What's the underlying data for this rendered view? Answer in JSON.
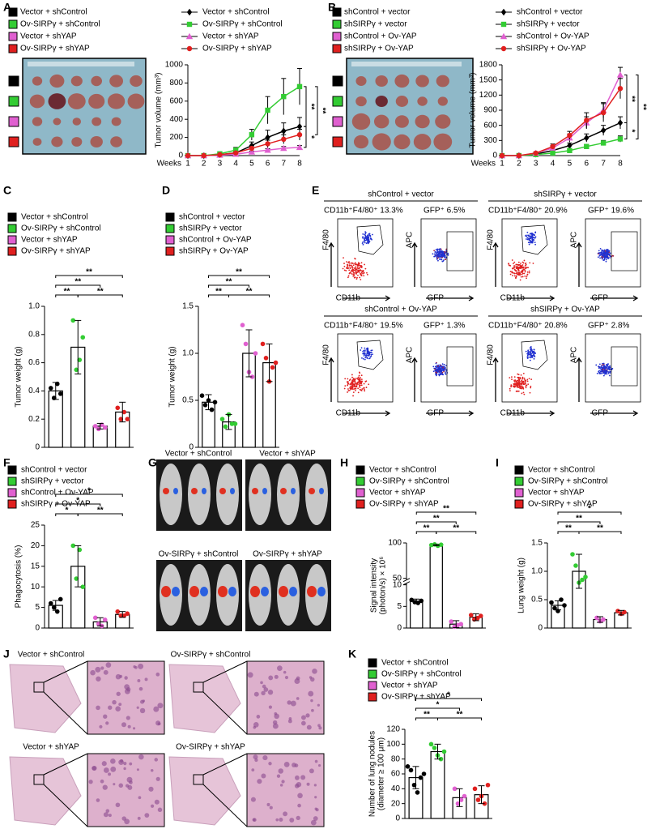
{
  "chart_data": [
    {
      "panel": "A",
      "type": "line",
      "photo_legend": [
        {
          "name": "Vector + shControl",
          "color": "#000000"
        },
        {
          "name": "Ov-SIRPγ + shControl",
          "color": "#33cc33"
        },
        {
          "name": "Vector + shYAP",
          "color": "#e060d0"
        },
        {
          "name": "Ov-SIRPγ + shYAP",
          "color": "#e0201f"
        }
      ],
      "x_label": "Weeks",
      "y_label": "Tumor volume (mm³)",
      "categories": [
        "1",
        "2",
        "3",
        "4",
        "5",
        "6",
        "7",
        "8"
      ],
      "ylim": [
        0,
        1000
      ],
      "yticks": [
        0,
        200,
        400,
        600,
        800,
        1000
      ],
      "series": [
        {
          "name": "Vector + shControl",
          "color": "#000000",
          "marker": "diamond",
          "values": [
            0,
            0,
            10,
            30,
            110,
            200,
            270,
            320
          ],
          "errors": [
            0,
            0,
            5,
            10,
            40,
            80,
            90,
            100
          ]
        },
        {
          "name": "Ov-SIRPγ + shControl",
          "color": "#33cc33",
          "marker": "square",
          "values": [
            0,
            0,
            20,
            60,
            230,
            500,
            650,
            760
          ],
          "errors": [
            0,
            0,
            10,
            30,
            60,
            150,
            200,
            200
          ]
        },
        {
          "name": "Vector + shYAP",
          "color": "#e060d0",
          "marker": "triangle",
          "values": [
            0,
            0,
            5,
            15,
            40,
            60,
            80,
            90
          ],
          "errors": [
            0,
            0,
            3,
            5,
            10,
            15,
            20,
            20
          ]
        },
        {
          "name": "Ov-SIRPγ + shYAP",
          "color": "#e0201f",
          "marker": "circle",
          "values": [
            0,
            0,
            10,
            30,
            80,
            130,
            180,
            230
          ],
          "errors": [
            0,
            0,
            5,
            10,
            30,
            40,
            50,
            60
          ]
        }
      ],
      "significance": [
        {
          "series": [
            1,
            0
          ],
          "label": "**"
        },
        {
          "series": [
            0,
            2
          ],
          "label": "*"
        },
        {
          "series": [
            1,
            3
          ],
          "label": "**"
        }
      ]
    },
    {
      "panel": "B",
      "type": "line",
      "photo_legend": [
        {
          "name": "shControl + vector",
          "color": "#000000"
        },
        {
          "name": "shSIRPγ + vector",
          "color": "#33cc33"
        },
        {
          "name": "shControl + Ov-YAP",
          "color": "#e060d0"
        },
        {
          "name": "shSIRPγ + Ov-YAP",
          "color": "#e0201f"
        }
      ],
      "x_label": "Weeks",
      "y_label": "Tumor volume (mm³)",
      "categories": [
        "1",
        "2",
        "3",
        "4",
        "5",
        "6",
        "7",
        "8"
      ],
      "ylim": [
        0,
        1800
      ],
      "yticks": [
        0,
        300,
        600,
        900,
        1200,
        1500,
        1800
      ],
      "series": [
        {
          "name": "shControl + vector",
          "color": "#000000",
          "marker": "diamond",
          "values": [
            0,
            0,
            30,
            100,
            200,
            350,
            500,
            650
          ],
          "errors": [
            0,
            0,
            10,
            30,
            50,
            80,
            100,
            120
          ]
        },
        {
          "name": "shSIRPγ + vector",
          "color": "#33cc33",
          "marker": "square",
          "values": [
            0,
            0,
            20,
            50,
            100,
            180,
            250,
            330
          ],
          "errors": [
            0,
            0,
            10,
            20,
            30,
            40,
            50,
            60
          ]
        },
        {
          "name": "shControl + Ov-YAP",
          "color": "#e060d0",
          "marker": "triangle",
          "values": [
            0,
            0,
            50,
            150,
            350,
            650,
            900,
            1600
          ],
          "errors": [
            0,
            0,
            20,
            50,
            80,
            120,
            150,
            150
          ]
        },
        {
          "name": "shSIRPγ + Ov-YAP",
          "color": "#e0201f",
          "marker": "circle",
          "values": [
            0,
            0,
            50,
            180,
            400,
            700,
            850,
            1330
          ],
          "errors": [
            0,
            0,
            20,
            50,
            80,
            150,
            180,
            200
          ]
        }
      ],
      "significance": [
        {
          "series": [
            2,
            0
          ],
          "label": "**"
        },
        {
          "series": [
            0,
            1
          ],
          "label": "*"
        },
        {
          "series": [
            2,
            1
          ],
          "label": "**"
        }
      ]
    },
    {
      "panel": "C",
      "type": "bar",
      "bar_fill": "#ffffff",
      "legend": [
        {
          "name": "Vector + shControl",
          "color": "#000000"
        },
        {
          "name": "Ov-SIRPγ + shControl",
          "color": "#33cc33"
        },
        {
          "name": "Vector + shYAP",
          "color": "#e060d0"
        },
        {
          "name": "Ov-SIRPγ + shYAP",
          "color": "#e0201f"
        }
      ],
      "y_label": "Tumor weight (g)",
      "ylim": [
        0,
        1.0
      ],
      "yticks": [
        0,
        0.2,
        0.4,
        0.6,
        0.8,
        {
          "value": 1.0,
          "label": "1.0"
        }
      ],
      "values": [
        0.4,
        0.71,
        0.15,
        0.25
      ],
      "errors": [
        0.06,
        0.19,
        0.02,
        0.07
      ],
      "points": [
        [
          0.42,
          0.35,
          0.45,
          0.38
        ],
        [
          0.9,
          0.55,
          0.62,
          0.78
        ],
        [
          0.15,
          0.13,
          0.16,
          0.14
        ],
        [
          0.28,
          0.2,
          0.25,
          0.2
        ]
      ],
      "significance": [
        {
          "groups": [
            0,
            1
          ],
          "label": "**"
        },
        {
          "groups": [
            1,
            3
          ],
          "label": "**"
        },
        {
          "groups": [
            0,
            2
          ],
          "label": "**"
        },
        {
          "groups": [
            0,
            3
          ],
          "label": "**"
        }
      ]
    },
    {
      "panel": "D",
      "type": "bar",
      "bar_fill": "#ffffff",
      "legend": [
        {
          "name": "shControl + vector",
          "color": "#000000"
        },
        {
          "name": "shSIRPγ + vector",
          "color": "#33cc33"
        },
        {
          "name": "shControl + Ov-YAP",
          "color": "#e060d0"
        },
        {
          "name": "shSIRPγ + Ov-YAP",
          "color": "#e0201f"
        }
      ],
      "y_label": "Tumor weight (g)",
      "ylim": [
        0,
        1.5
      ],
      "yticks": [
        0,
        0.5,
        {
          "value": 1.0,
          "label": "1.0"
        },
        1.5
      ],
      "values": [
        0.48,
        0.27,
        1.0,
        0.9
      ],
      "errors": [
        0.08,
        0.08,
        0.25,
        0.2
      ],
      "points": [
        [
          0.55,
          0.45,
          0.5,
          0.4,
          0.48
        ],
        [
          0.3,
          0.22,
          0.35,
          0.25,
          0.25
        ],
        [
          1.3,
          1.1,
          0.8,
          0.75,
          1.0
        ],
        [
          1.1,
          0.95,
          0.7,
          0.85,
          0.9
        ]
      ],
      "significance": [
        {
          "groups": [
            0,
            1
          ],
          "label": "**"
        },
        {
          "groups": [
            1,
            3
          ],
          "label": "**"
        },
        {
          "groups": [
            0,
            2
          ],
          "label": "**"
        },
        {
          "groups": [
            0,
            3
          ],
          "label": "**"
        }
      ]
    },
    {
      "panel": "F",
      "type": "bar",
      "bar_fill": "#ffffff",
      "legend": [
        {
          "name": "shControl + vector",
          "color": "#000000"
        },
        {
          "name": "shSIRPγ + vector",
          "color": "#33cc33"
        },
        {
          "name": "shControl + Ov-YAP",
          "color": "#e060d0"
        },
        {
          "name": "shSIRPγ + Ov-YAP",
          "color": "#e0201f"
        }
      ],
      "y_label": "Phagocytosis (%)",
      "ylim": [
        0,
        25
      ],
      "yticks": [
        0,
        5,
        10,
        15,
        20,
        25
      ],
      "values": [
        5.5,
        15,
        1.5,
        3.3
      ],
      "errors": [
        1.2,
        5,
        1,
        0.7
      ],
      "points": [
        [
          6,
          5,
          4,
          7
        ],
        [
          20,
          12,
          19,
          10
        ],
        [
          2.5,
          1,
          0.5,
          2
        ],
        [
          4,
          3,
          3,
          3.5
        ]
      ],
      "significance": [
        {
          "groups": [
            0,
            1
          ],
          "label": "*"
        },
        {
          "groups": [
            1,
            3
          ],
          "label": "**"
        },
        {
          "groups": [
            0,
            2
          ],
          "label": "*"
        },
        {
          "groups": [
            0,
            3
          ],
          "label": "*"
        }
      ]
    },
    {
      "panel": "H",
      "type": "bar",
      "bar_fill": "#ffffff",
      "legend": [
        {
          "name": "Vector + shControl",
          "color": "#000000"
        },
        {
          "name": "Ov-SIRPγ + shControl",
          "color": "#33cc33"
        },
        {
          "name": "Vector + shYAP",
          "color": "#e060d0"
        },
        {
          "name": "Ov-SIRPγ + shYAP",
          "color": "#e0201f"
        }
      ],
      "y_label": [
        "Signal intensity",
        "(photon/s) × 10⁶"
      ],
      "ylim": [
        0,
        100
      ],
      "yticks": [
        0,
        5,
        10,
        50,
        100
      ],
      "axis_break": [
        10,
        50
      ],
      "values": [
        6.2,
        97,
        0.9,
        2.5
      ],
      "errors": [
        0.5,
        1,
        0.8,
        0.8
      ],
      "points": [
        [
          6.5,
          6,
          5.8,
          6.3
        ],
        [
          97,
          98,
          96,
          97.5
        ],
        [
          1.5,
          0.3,
          0.7,
          0.9
        ],
        [
          3,
          2,
          2.3,
          2.8
        ]
      ],
      "significance": [
        {
          "groups": [
            0,
            1
          ],
          "label": "**"
        },
        {
          "groups": [
            1,
            3
          ],
          "label": "**"
        },
        {
          "groups": [
            0,
            2
          ],
          "label": "**"
        },
        {
          "groups": [
            0,
            3
          ],
          "label": "**"
        }
      ]
    },
    {
      "panel": "I",
      "type": "bar",
      "bar_fill": "#ffffff",
      "legend": [
        {
          "name": "Vector + shControl",
          "color": "#000000"
        },
        {
          "name": "Ov-SIRPγ + shControl",
          "color": "#33cc33"
        },
        {
          "name": "Vector + shYAP",
          "color": "#e060d0"
        },
        {
          "name": "Ov-SIRPγ + shYAP",
          "color": "#e0201f"
        }
      ],
      "y_label": "Lung weight (g)",
      "ylim": [
        0,
        1.5
      ],
      "yticks": [
        0,
        0.5,
        {
          "value": 1.0,
          "label": "1.0"
        },
        1.5
      ],
      "values": [
        0.4,
        1.0,
        0.15,
        0.27
      ],
      "errors": [
        0.08,
        0.3,
        0.05,
        0.04
      ],
      "points": [
        [
          0.45,
          0.35,
          0.3,
          0.5,
          0.4
        ],
        [
          1.3,
          1.1,
          0.8,
          0.85,
          0.9
        ],
        [
          0.18,
          0.12,
          0.15
        ],
        [
          0.3,
          0.25,
          0.28
        ]
      ],
      "significance": [
        {
          "groups": [
            0,
            1
          ],
          "label": "**"
        },
        {
          "groups": [
            1,
            3
          ],
          "label": "**"
        },
        {
          "groups": [
            0,
            2
          ],
          "label": "**"
        },
        {
          "groups": [
            0,
            3
          ],
          "label": "*"
        }
      ]
    },
    {
      "panel": "K",
      "type": "bar",
      "bar_fill": "#ffffff",
      "legend": [
        {
          "name": "Vector + shControl",
          "color": "#000000"
        },
        {
          "name": "Ov-SIRPγ + shControl",
          "color": "#33cc33"
        },
        {
          "name": "Vector + shYAP",
          "color": "#e060d0"
        },
        {
          "name": "Ov-SIRPγ + shYAP",
          "color": "#e0201f"
        }
      ],
      "y_label": [
        "Number of lung nodules",
        "(diameter ≥ 100 μm)"
      ],
      "ylim": [
        0,
        120
      ],
      "yticks": [
        0,
        20,
        40,
        60,
        80,
        100,
        120
      ],
      "values": [
        55,
        90,
        28,
        32
      ],
      "errors": [
        15,
        10,
        12,
        12
      ],
      "points": [
        [
          70,
          65,
          45,
          35,
          55,
          60
        ],
        [
          100,
          95,
          85,
          80,
          90
        ],
        [
          40,
          20,
          25,
          30
        ],
        [
          40,
          25,
          30,
          20,
          45
        ]
      ],
      "significance": [
        {
          "groups": [
            0,
            1
          ],
          "label": "**"
        },
        {
          "groups": [
            1,
            3
          ],
          "label": "**"
        },
        {
          "groups": [
            0,
            2
          ],
          "label": "*"
        },
        {
          "groups": [
            0,
            3
          ],
          "label": "*"
        }
      ]
    }
  ],
  "flow": {
    "panel": "E",
    "axis_labels": {
      "y1": "F4/80",
      "x1": "CD11b",
      "y2": "APC",
      "x2": "GFP"
    },
    "samples": [
      {
        "title": "shControl + vector",
        "gate1": "CD11b⁺F4/80⁺ 13.3%",
        "gate2": "GFP⁺ 6.5%"
      },
      {
        "title": "shSIRPγ + vector",
        "gate1": "CD11b⁺F4/80⁺ 20.9%",
        "gate2": "GFP⁺ 19.6%"
      },
      {
        "title": "shControl + Ov-YAP",
        "gate1": "CD11b⁺F4/80⁺ 19.5%",
        "gate2": "GFP⁺ 1.3%"
      },
      {
        "title": "shSIRPγ + Ov-YAP",
        "gate1": "CD11b⁺F4/80⁺ 20.8%",
        "gate2": "GFP⁺ 2.8%"
      }
    ]
  },
  "imaging": {
    "panel": "G",
    "labels": [
      "Vector + shControl",
      "Vector + shYAP",
      "Ov-SIRPγ + shControl",
      "Ov-SIRPγ + shYAP"
    ]
  },
  "histology": {
    "panel": "J",
    "labels": [
      "Vector + shControl",
      "Ov-SIRPγ + shControl",
      "Vector + shYAP",
      "Ov-SIRPγ + shYAP"
    ]
  }
}
